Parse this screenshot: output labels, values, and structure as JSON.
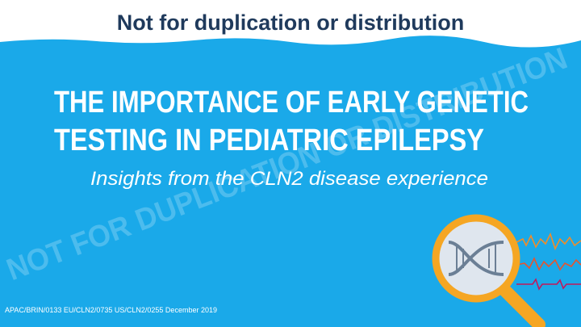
{
  "header": {
    "notice": "Not for duplication or distribution"
  },
  "title": {
    "lines": [
      "THE IMPORTANCE OF EARLY GENETIC",
      "TESTING IN PEDIATRIC EPILEPSY"
    ]
  },
  "subtitle": "Insights from the CLN2 disease experience",
  "watermark": "NOT FOR DUPLICATION OR DISTRIBUTION",
  "footer": "APAC/BRIN/0133  EU/CLN2/0735  US/CLN2/0255  December 2019"
}
